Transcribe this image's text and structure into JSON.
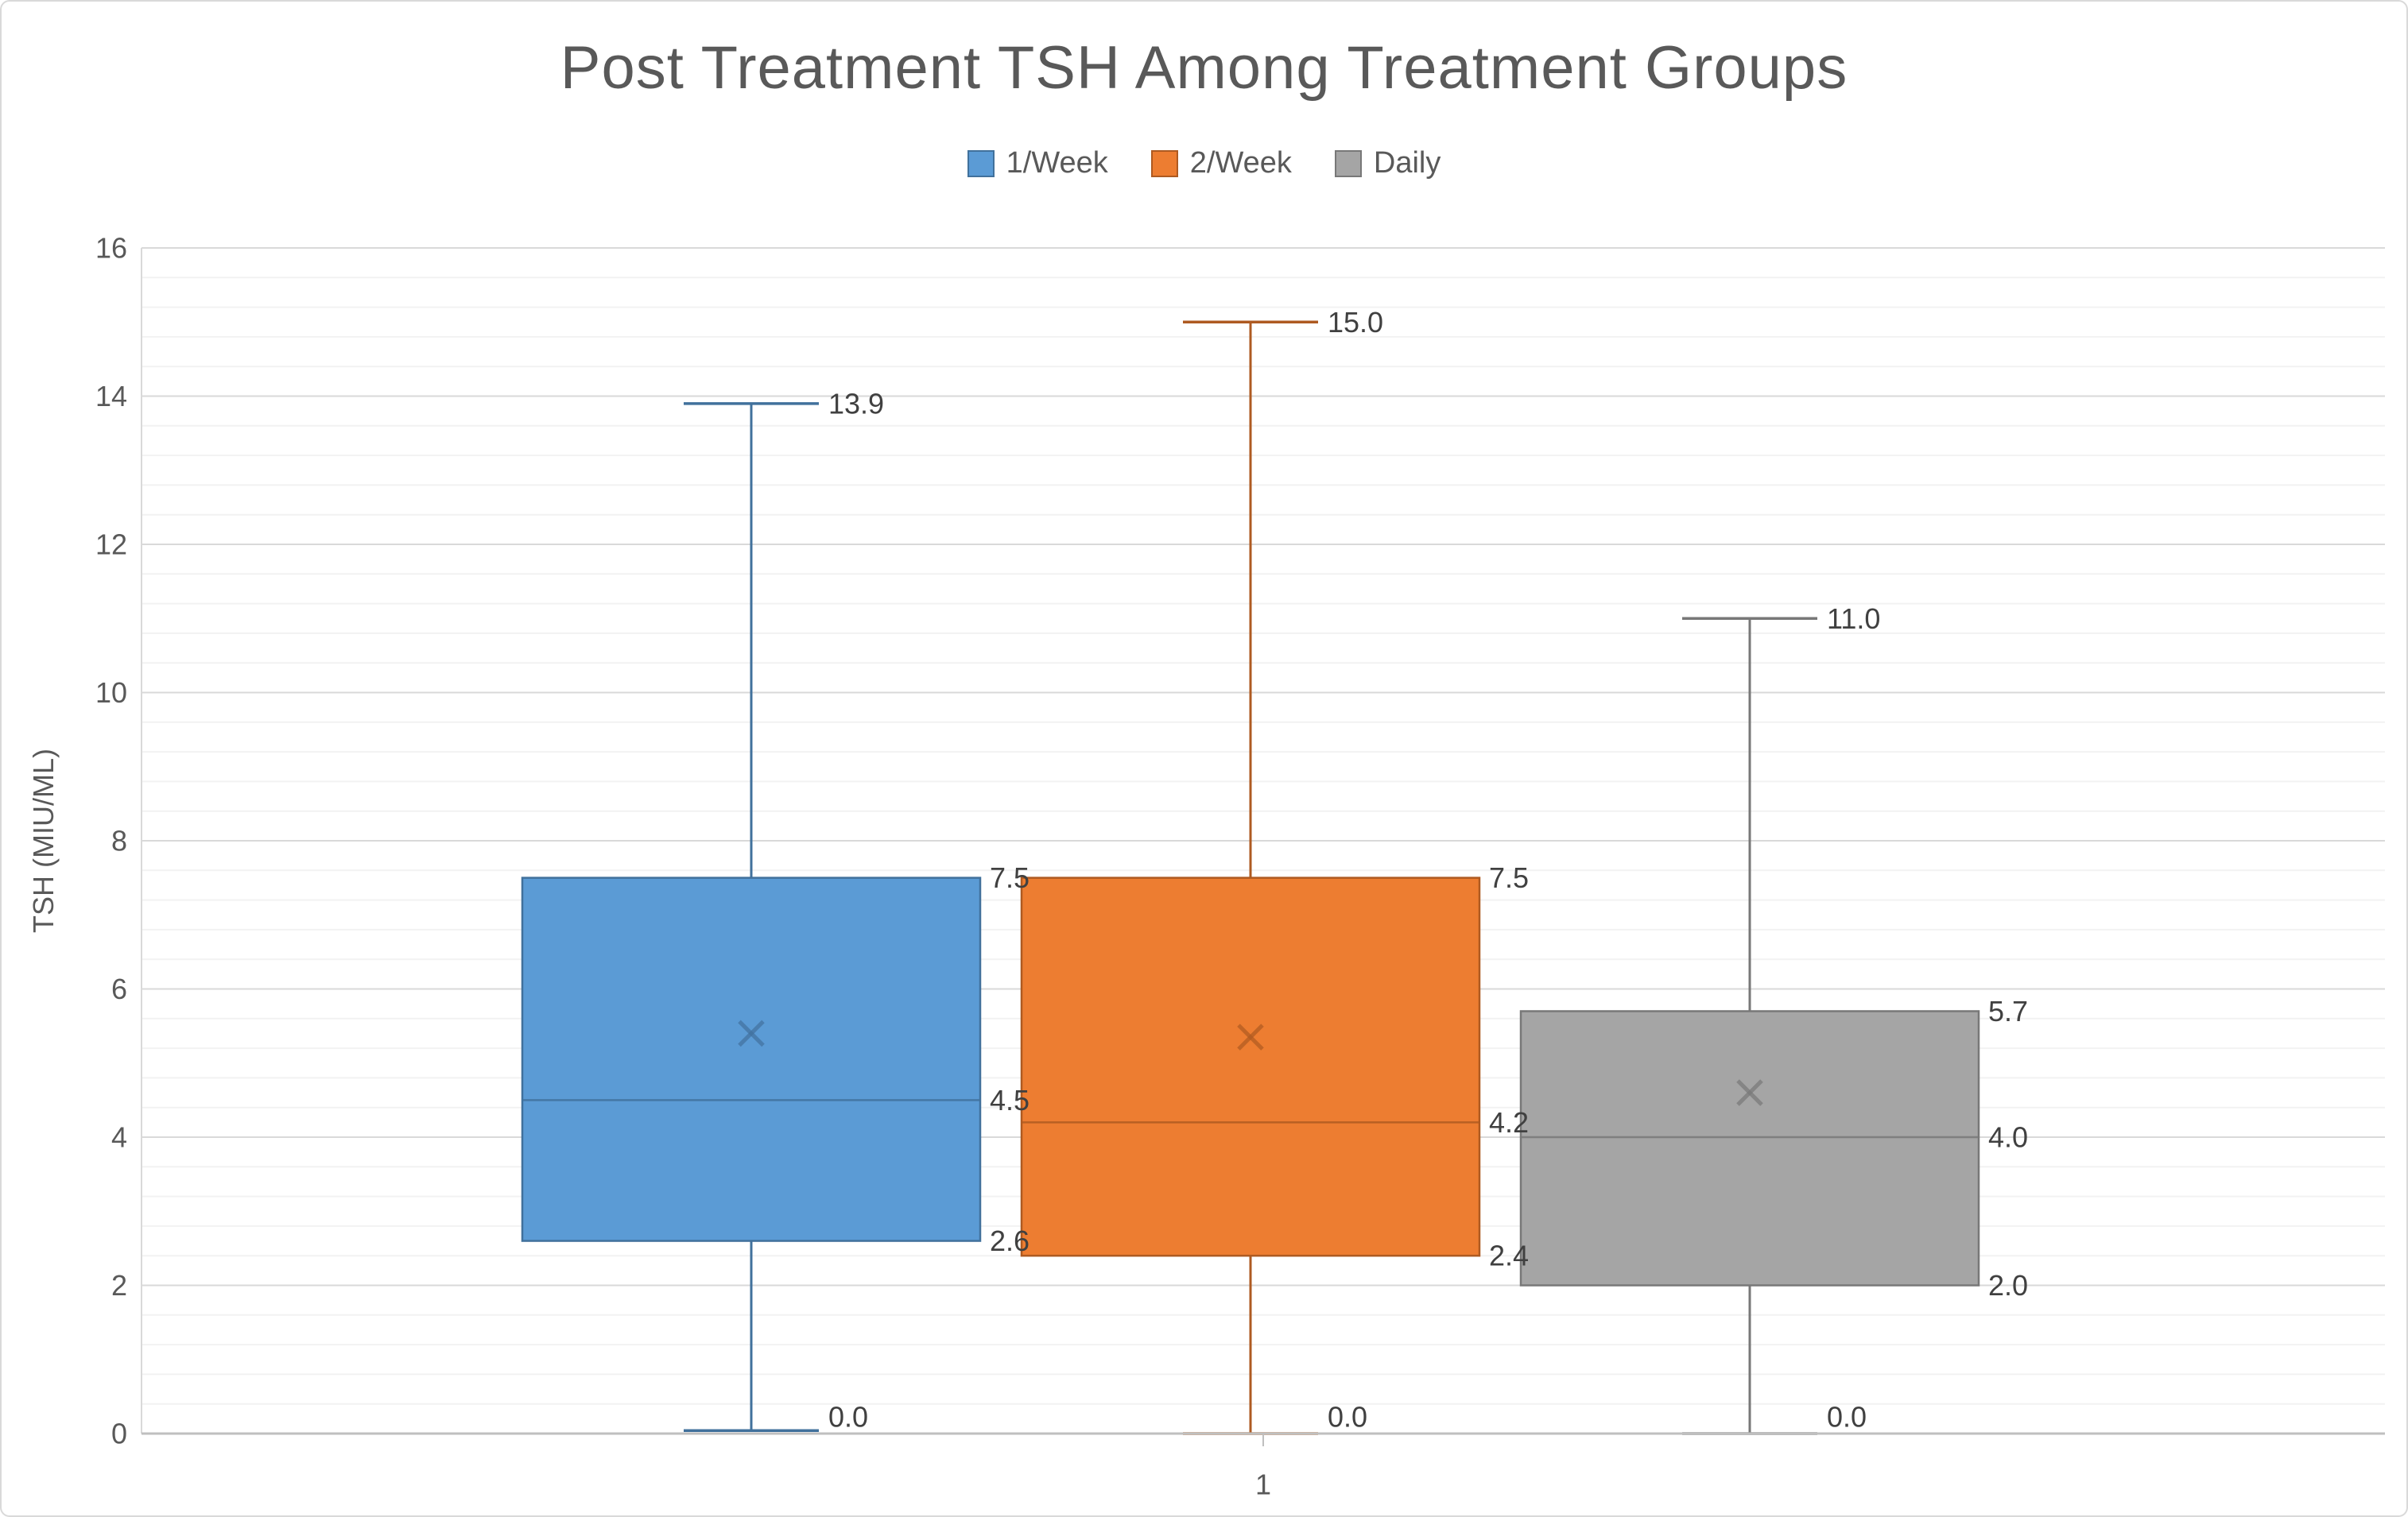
{
  "page": {
    "background": "#FFFFFF",
    "border_color": "#D9D9D9"
  },
  "header": {
    "title": "Post Treatment TSH Among Treatment Groups",
    "title_color": "#595959"
  },
  "legend": {
    "items": [
      {
        "label": "1/Week",
        "fill": "#5B9BD5",
        "border": "#41719C"
      },
      {
        "label": "2/Week",
        "fill": "#ED7D31",
        "border": "#AE5A21"
      },
      {
        "label": "Daily",
        "fill": "#A5A5A5",
        "border": "#787878"
      }
    ]
  },
  "y_axis": {
    "title": "TSH (MIU/ML)",
    "min": 0,
    "max": 16,
    "major_unit": 2,
    "minor_unit": 0.4,
    "tick_labels": [
      "0",
      "2",
      "4",
      "6",
      "8",
      "10",
      "12",
      "14",
      "16"
    ],
    "label_color": "#595959",
    "major_grid_color": "#D9D9D9",
    "minor_grid_color": "#F2F2F2",
    "axis_line_color": "#BFBFBF"
  },
  "x_axis": {
    "category_label": "1",
    "label_color": "#595959"
  },
  "chart_data": {
    "type": "boxplot",
    "title": "Post Treatment TSH Among Treatment Groups",
    "ylabel": "TSH (MIU/ML)",
    "ylim": [
      0,
      16
    ],
    "grid": "major+minor",
    "legend_position": "top",
    "categories": [
      "1"
    ],
    "series": [
      {
        "name": "1/Week",
        "fill": "#5B9BD5",
        "stroke": "#41719C",
        "min": 0.04,
        "q1": 2.6,
        "median": 4.5,
        "q3": 7.5,
        "max": 13.9,
        "mean": 5.4,
        "shown_labels": [
          "13.9",
          "7.5",
          "4.5",
          "2.6",
          "0.0"
        ]
      },
      {
        "name": "2/Week",
        "fill": "#ED7D31",
        "stroke": "#AE5A21",
        "min": 0.0,
        "q1": 2.4,
        "median": 4.2,
        "q3": 7.5,
        "max": 15.0,
        "mean": 5.35,
        "shown_labels": [
          "15.0",
          "7.5",
          "4.2",
          "2.4",
          "0.0"
        ]
      },
      {
        "name": "Daily",
        "fill": "#A5A5A5",
        "stroke": "#787878",
        "min": 0.0,
        "q1": 2.0,
        "median": 4.0,
        "q3": 5.7,
        "max": 11.0,
        "mean": 4.6,
        "shown_labels": [
          "11.0",
          "5.7",
          "4.0",
          "2.0",
          "0.0"
        ]
      }
    ],
    "data_label_color": "#404040",
    "data_label_decimals": 1
  }
}
